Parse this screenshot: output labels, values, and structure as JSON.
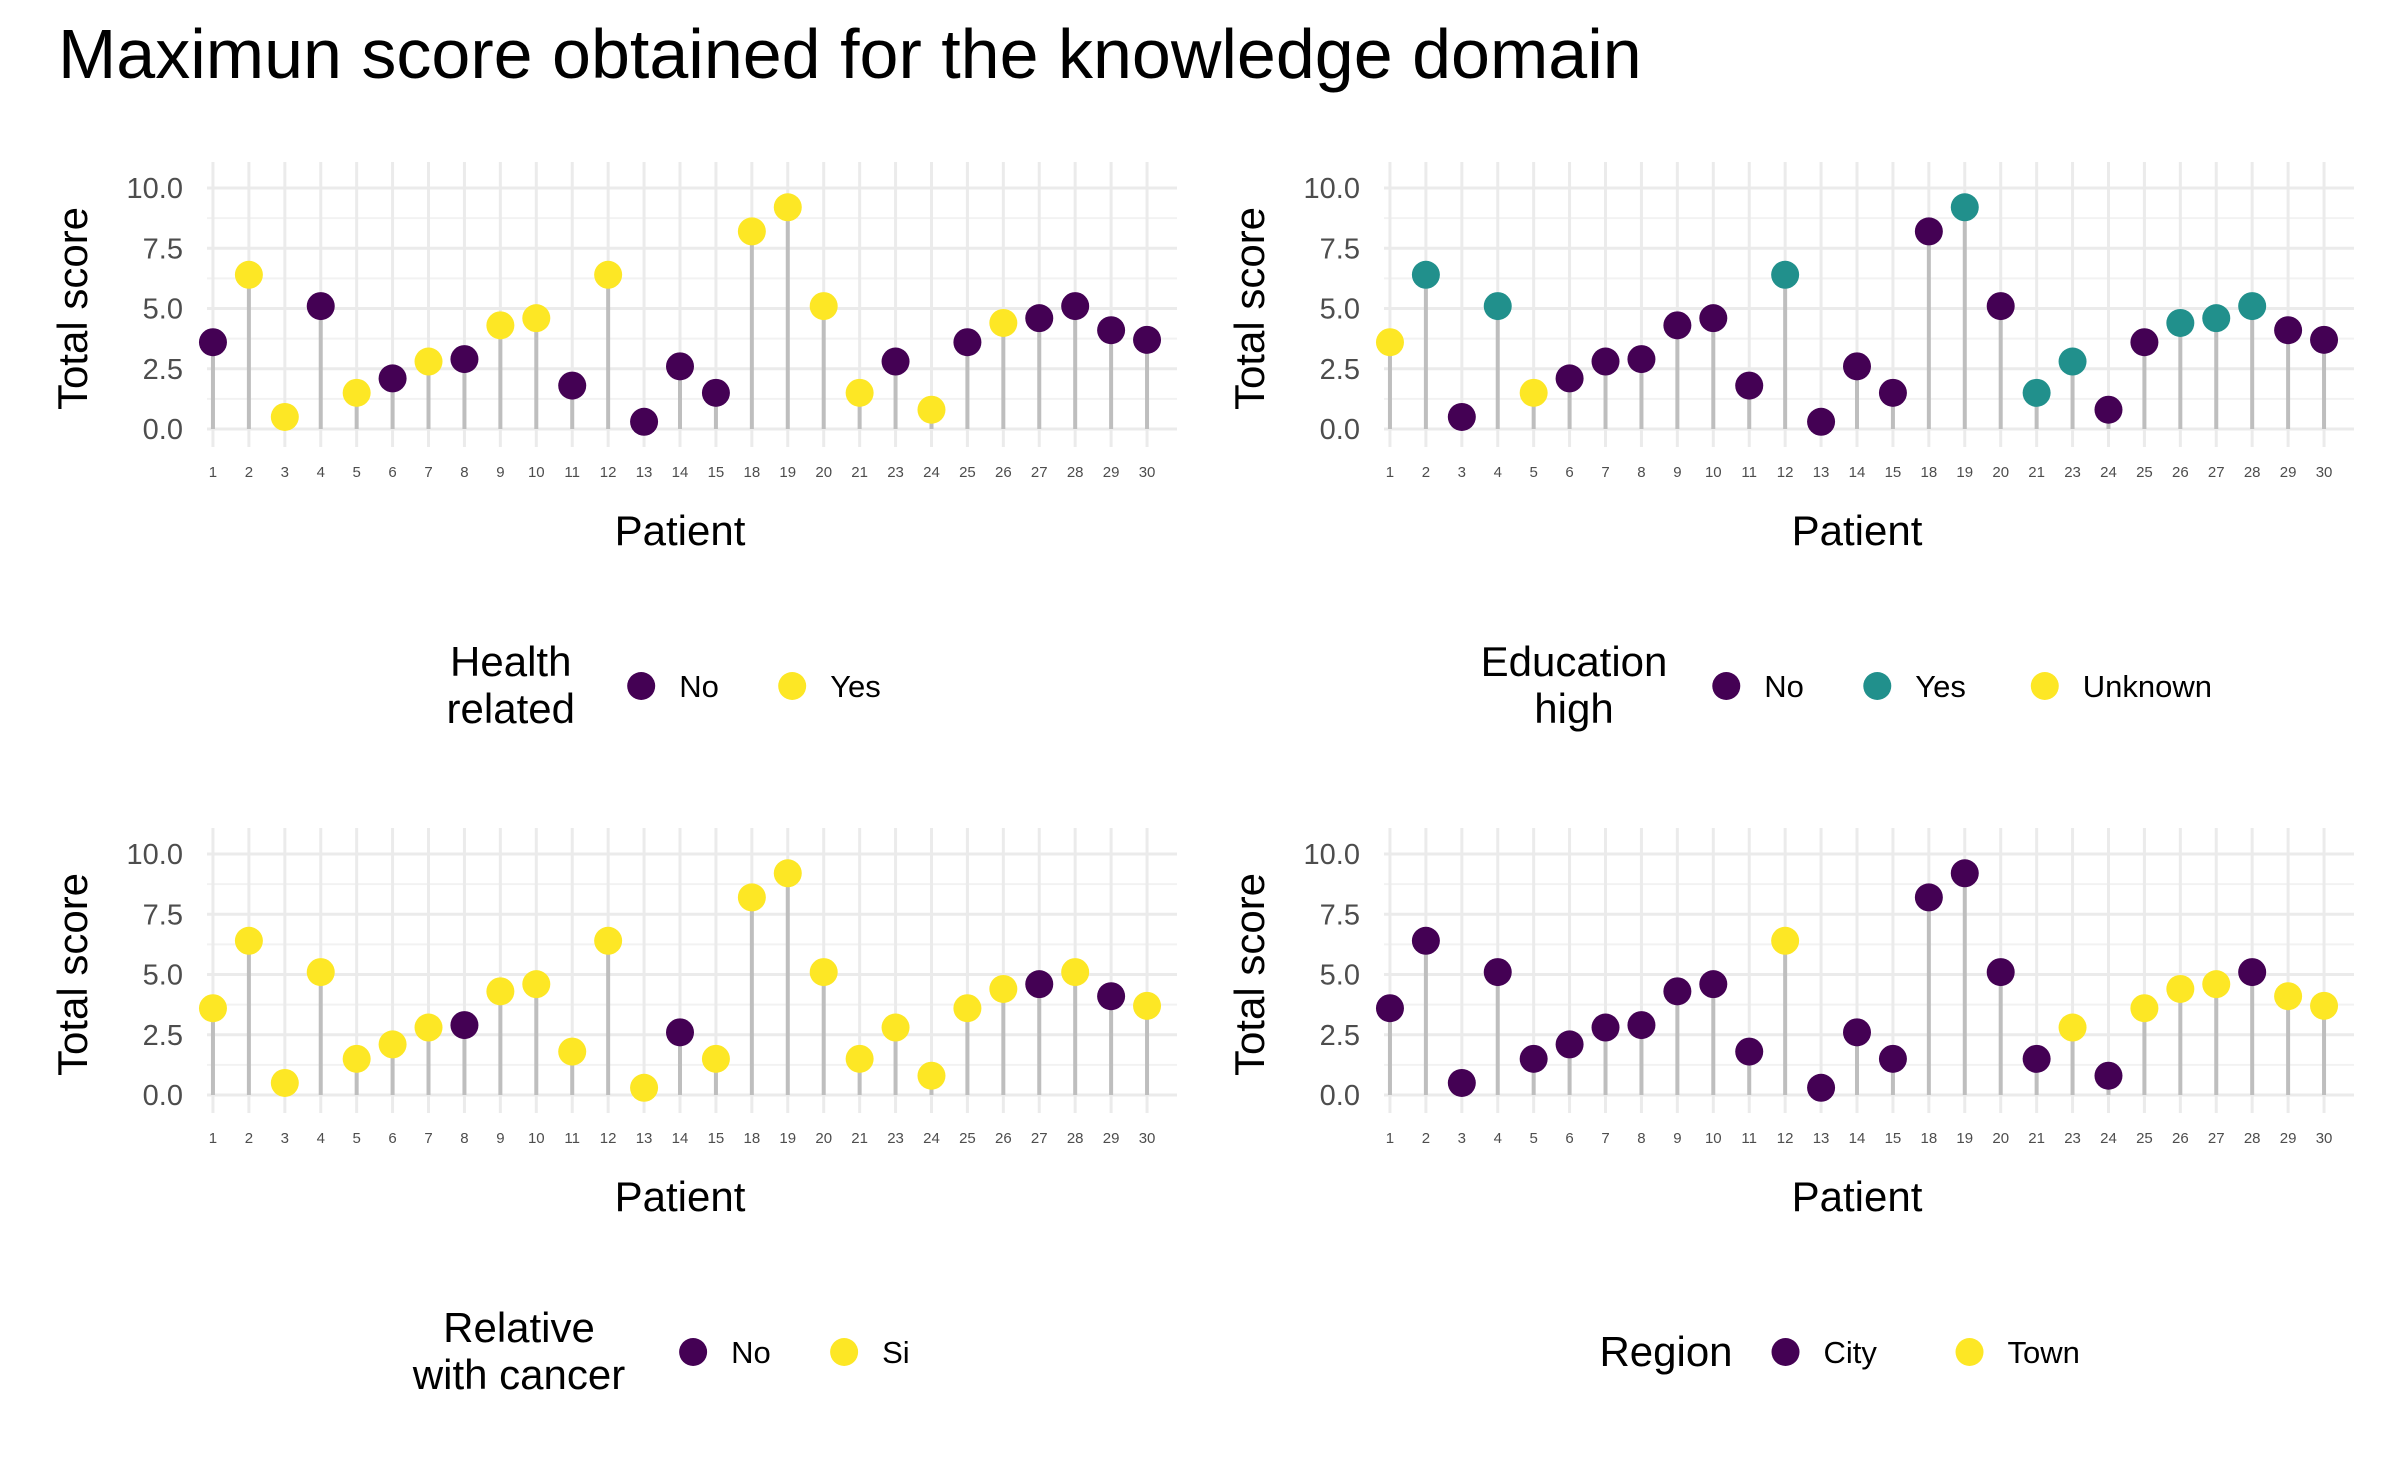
{
  "title": "Maximun score obtained for the knowledge domain",
  "chart_data": [
    {
      "type": "lollipop",
      "xlabel": "Patient",
      "ylabel": "Total score",
      "ylim": [
        0,
        10
      ],
      "yticks": [
        "0.0",
        "2.5",
        "5.0",
        "7.5",
        "10.0"
      ],
      "grid": true,
      "categories": [
        "1",
        "2",
        "3",
        "4",
        "5",
        "6",
        "7",
        "8",
        "9",
        "10",
        "11",
        "12",
        "13",
        "14",
        "15",
        "18",
        "19",
        "20",
        "21",
        "23",
        "24",
        "25",
        "26",
        "27",
        "28",
        "29",
        "30"
      ],
      "values": [
        3.6,
        6.4,
        0.5,
        5.1,
        1.5,
        2.1,
        2.8,
        2.9,
        4.3,
        4.6,
        1.8,
        6.4,
        0.3,
        2.6,
        1.5,
        8.2,
        9.2,
        5.1,
        1.5,
        2.8,
        0.8,
        3.6,
        4.4,
        4.6,
        5.1,
        4.1,
        3.7
      ],
      "groups": [
        "No",
        "Yes",
        "Yes",
        "No",
        "Yes",
        "No",
        "Yes",
        "No",
        "Yes",
        "Yes",
        "No",
        "Yes",
        "No",
        "No",
        "No",
        "Yes",
        "Yes",
        "Yes",
        "Yes",
        "No",
        "Yes",
        "No",
        "Yes",
        "No",
        "No",
        "No",
        "No"
      ],
      "legend": {
        "title": [
          "Health",
          "related"
        ],
        "entries": [
          {
            "label": "No",
            "color": "#440154"
          },
          {
            "label": "Yes",
            "color": "#FDE725"
          }
        ],
        "position": "bottom"
      }
    },
    {
      "type": "lollipop",
      "xlabel": "Patient",
      "ylabel": "Total score",
      "ylim": [
        0,
        10
      ],
      "yticks": [
        "0.0",
        "2.5",
        "5.0",
        "7.5",
        "10.0"
      ],
      "grid": true,
      "categories": [
        "1",
        "2",
        "3",
        "4",
        "5",
        "6",
        "7",
        "8",
        "9",
        "10",
        "11",
        "12",
        "13",
        "14",
        "15",
        "18",
        "19",
        "20",
        "21",
        "23",
        "24",
        "25",
        "26",
        "27",
        "28",
        "29",
        "30"
      ],
      "values": [
        3.6,
        6.4,
        0.5,
        5.1,
        1.5,
        2.1,
        2.8,
        2.9,
        4.3,
        4.6,
        1.8,
        6.4,
        0.3,
        2.6,
        1.5,
        8.2,
        9.2,
        5.1,
        1.5,
        2.8,
        0.8,
        3.6,
        4.4,
        4.6,
        5.1,
        4.1,
        3.7
      ],
      "groups": [
        "Unknown",
        "Yes",
        "No",
        "Yes",
        "Unknown",
        "No",
        "No",
        "No",
        "No",
        "No",
        "No",
        "Yes",
        "No",
        "No",
        "No",
        "No",
        "Yes",
        "No",
        "Yes",
        "Yes",
        "No",
        "No",
        "Yes",
        "Yes",
        "Yes",
        "No",
        "No"
      ],
      "legend": {
        "title": [
          "Education",
          "high"
        ],
        "entries": [
          {
            "label": "No",
            "color": "#440154"
          },
          {
            "label": "Yes",
            "color": "#21908C"
          },
          {
            "label": "Unknown",
            "color": "#FDE725"
          }
        ],
        "position": "bottom"
      }
    },
    {
      "type": "lollipop",
      "xlabel": "Patient",
      "ylabel": "Total score",
      "ylim": [
        0,
        10
      ],
      "yticks": [
        "0.0",
        "2.5",
        "5.0",
        "7.5",
        "10.0"
      ],
      "grid": true,
      "categories": [
        "1",
        "2",
        "3",
        "4",
        "5",
        "6",
        "7",
        "8",
        "9",
        "10",
        "11",
        "12",
        "13",
        "14",
        "15",
        "18",
        "19",
        "20",
        "21",
        "23",
        "24",
        "25",
        "26",
        "27",
        "28",
        "29",
        "30"
      ],
      "values": [
        3.6,
        6.4,
        0.5,
        5.1,
        1.5,
        2.1,
        2.8,
        2.9,
        4.3,
        4.6,
        1.8,
        6.4,
        0.3,
        2.6,
        1.5,
        8.2,
        9.2,
        5.1,
        1.5,
        2.8,
        0.8,
        3.6,
        4.4,
        4.6,
        5.1,
        4.1,
        3.7
      ],
      "groups": [
        "Si",
        "Si",
        "Si",
        "Si",
        "Si",
        "Si",
        "Si",
        "No",
        "Si",
        "Si",
        "Si",
        "Si",
        "Si",
        "No",
        "Si",
        "Si",
        "Si",
        "Si",
        "Si",
        "Si",
        "Si",
        "Si",
        "Si",
        "No",
        "Si",
        "No",
        "Si"
      ],
      "legend": {
        "title": [
          "Relative",
          "with cancer"
        ],
        "entries": [
          {
            "label": "No",
            "color": "#440154"
          },
          {
            "label": "Si",
            "color": "#FDE725"
          }
        ],
        "position": "bottom"
      }
    },
    {
      "type": "lollipop",
      "xlabel": "Patient",
      "ylabel": "Total score",
      "ylim": [
        0,
        10
      ],
      "yticks": [
        "0.0",
        "2.5",
        "5.0",
        "7.5",
        "10.0"
      ],
      "grid": true,
      "categories": [
        "1",
        "2",
        "3",
        "4",
        "5",
        "6",
        "7",
        "8",
        "9",
        "10",
        "11",
        "12",
        "13",
        "14",
        "15",
        "18",
        "19",
        "20",
        "21",
        "23",
        "24",
        "25",
        "26",
        "27",
        "28",
        "29",
        "30"
      ],
      "values": [
        3.6,
        6.4,
        0.5,
        5.1,
        1.5,
        2.1,
        2.8,
        2.9,
        4.3,
        4.6,
        1.8,
        6.4,
        0.3,
        2.6,
        1.5,
        8.2,
        9.2,
        5.1,
        1.5,
        2.8,
        0.8,
        3.6,
        4.4,
        4.6,
        5.1,
        4.1,
        3.7
      ],
      "groups": [
        "City",
        "City",
        "City",
        "City",
        "City",
        "City",
        "City",
        "City",
        "City",
        "City",
        "City",
        "Town",
        "City",
        "City",
        "City",
        "City",
        "City",
        "City",
        "City",
        "Town",
        "City",
        "Town",
        "Town",
        "Town",
        "City",
        "Town",
        "Town"
      ],
      "legend": {
        "title": [
          "Region"
        ],
        "entries": [
          {
            "label": "City",
            "color": "#440154"
          },
          {
            "label": "Town",
            "color": "#FDE725"
          }
        ],
        "position": "bottom"
      }
    }
  ]
}
